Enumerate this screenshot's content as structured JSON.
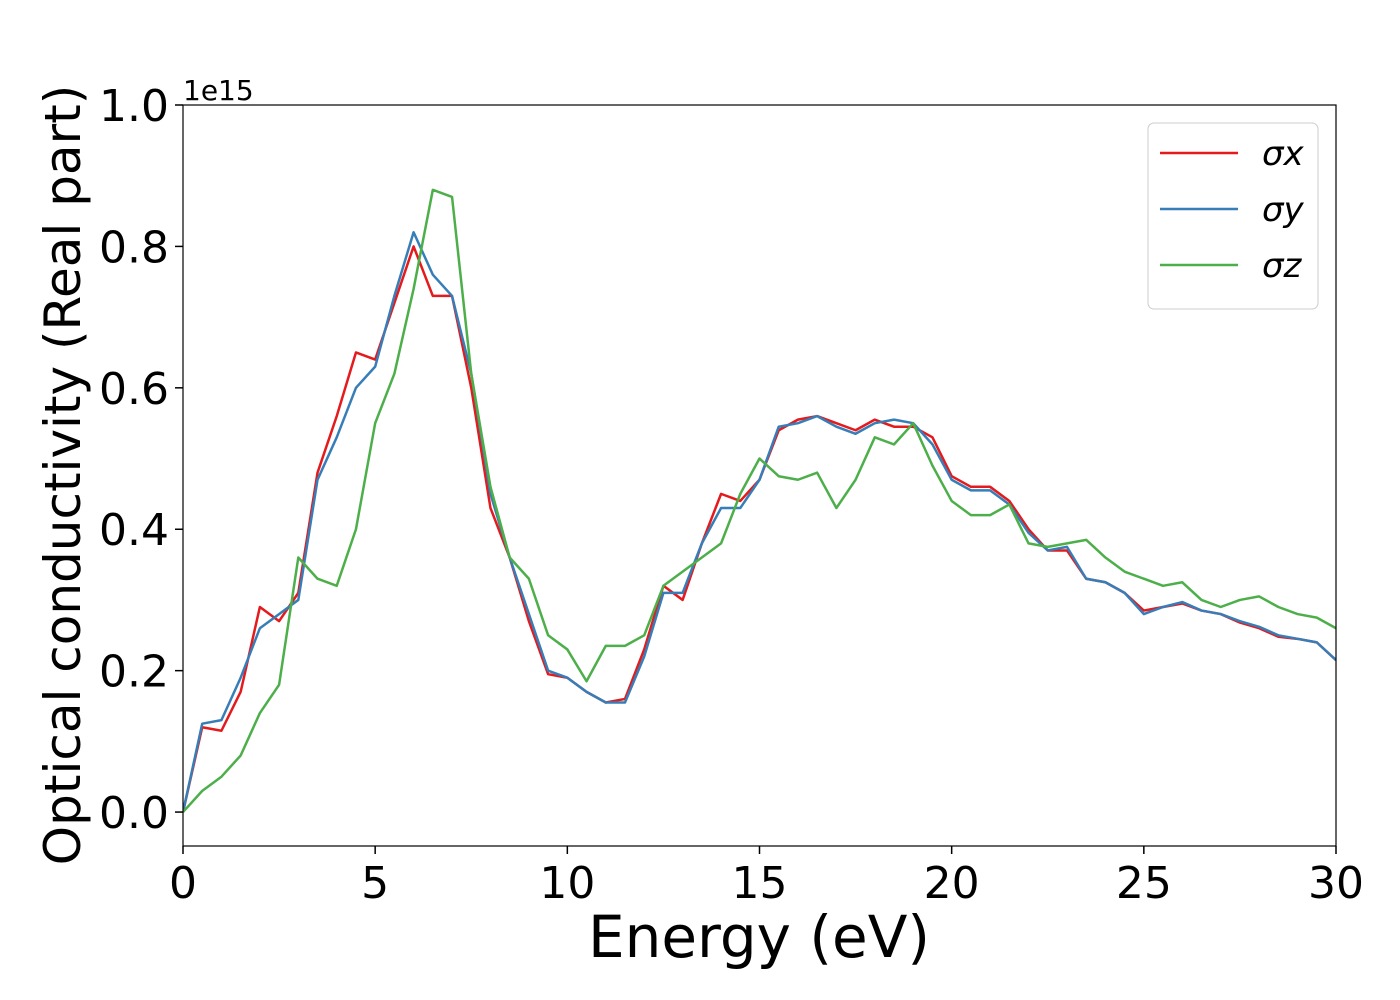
{
  "chart_data": {
    "type": "line",
    "xlabel": "Energy (eV)",
    "ylabel": "Optical conductivity (Real part)",
    "y_offset_label": "1e15",
    "x": [
      0,
      0.5,
      1,
      1.5,
      2,
      2.5,
      3,
      3.5,
      4,
      4.5,
      5,
      5.5,
      6,
      6.5,
      7,
      7.5,
      8,
      8.5,
      9,
      9.5,
      10,
      10.5,
      11,
      11.5,
      12,
      12.5,
      13,
      13.5,
      14,
      14.5,
      15,
      15.5,
      16,
      16.5,
      17,
      17.5,
      18,
      18.5,
      19,
      19.5,
      20,
      20.5,
      21,
      21.5,
      22,
      22.5,
      23,
      23.5,
      24,
      24.5,
      25,
      25.5,
      26,
      26.5,
      27,
      27.5,
      28,
      28.5,
      29,
      29.5,
      30
    ],
    "series": [
      {
        "name": "σx",
        "color": "#e41a1c",
        "values": [
          0,
          0.12,
          0.115,
          0.17,
          0.29,
          0.27,
          0.31,
          0.48,
          0.56,
          0.65,
          0.64,
          0.72,
          0.8,
          0.73,
          0.73,
          0.6,
          0.43,
          0.36,
          0.27,
          0.195,
          0.19,
          0.17,
          0.155,
          0.16,
          0.23,
          0.32,
          0.3,
          0.38,
          0.45,
          0.44,
          0.47,
          0.54,
          0.555,
          0.56,
          0.55,
          0.54,
          0.555,
          0.545,
          0.545,
          0.53,
          0.475,
          0.46,
          0.46,
          0.44,
          0.4,
          0.37,
          0.37,
          0.33,
          0.325,
          0.31,
          0.285,
          0.29,
          0.295,
          0.285,
          0.28,
          0.268,
          0.26,
          0.248,
          0.245,
          0.24,
          0.215
        ]
      },
      {
        "name": "σy",
        "color": "#377eb8",
        "values": [
          0,
          0.125,
          0.13,
          0.19,
          0.26,
          0.28,
          0.3,
          0.47,
          0.53,
          0.6,
          0.63,
          0.73,
          0.82,
          0.76,
          0.73,
          0.62,
          0.45,
          0.36,
          0.28,
          0.2,
          0.19,
          0.17,
          0.155,
          0.155,
          0.22,
          0.31,
          0.31,
          0.38,
          0.43,
          0.43,
          0.47,
          0.545,
          0.55,
          0.56,
          0.545,
          0.535,
          0.55,
          0.555,
          0.55,
          0.52,
          0.47,
          0.455,
          0.455,
          0.435,
          0.395,
          0.37,
          0.375,
          0.33,
          0.325,
          0.31,
          0.28,
          0.29,
          0.297,
          0.285,
          0.28,
          0.27,
          0.262,
          0.25,
          0.245,
          0.24,
          0.215
        ]
      },
      {
        "name": "σz",
        "color": "#4daf4a",
        "values": [
          0,
          0.03,
          0.05,
          0.08,
          0.14,
          0.18,
          0.36,
          0.33,
          0.32,
          0.4,
          0.55,
          0.62,
          0.74,
          0.88,
          0.87,
          0.62,
          0.46,
          0.36,
          0.33,
          0.25,
          0.23,
          0.185,
          0.235,
          0.235,
          0.25,
          0.32,
          0.34,
          0.36,
          0.38,
          0.45,
          0.5,
          0.475,
          0.47,
          0.48,
          0.43,
          0.47,
          0.53,
          0.52,
          0.55,
          0.49,
          0.44,
          0.42,
          0.42,
          0.435,
          0.38,
          0.375,
          0.38,
          0.385,
          0.36,
          0.34,
          0.33,
          0.32,
          0.325,
          0.3,
          0.29,
          0.3,
          0.305,
          0.29,
          0.28,
          0.275,
          0.26
        ]
      }
    ],
    "xlim": [
      0,
      30
    ],
    "xticks": [
      0,
      5,
      10,
      15,
      20,
      25,
      30
    ],
    "ylim": [
      -0.048,
      1.0
    ],
    "yticks": [
      {
        "value": 0,
        "label": "0.0"
      },
      0.2,
      0.4,
      0.6,
      0.8,
      {
        "value": 1,
        "label": "1.0"
      }
    ],
    "legend": "upper right",
    "grid": false
  }
}
